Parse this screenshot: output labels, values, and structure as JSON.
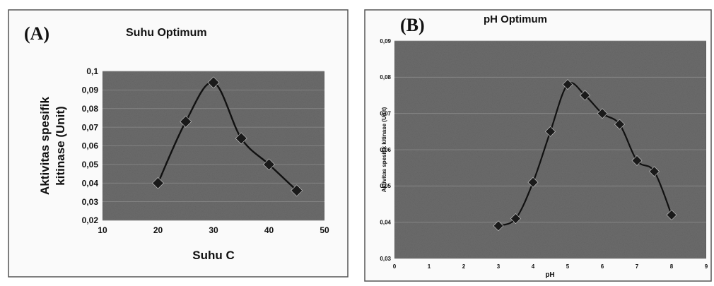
{
  "chart_data": [
    {
      "type": "line",
      "panel_label": "(A)",
      "title": "Suhu Optimum",
      "xlabel": "Suhu C",
      "ylabel_lines": [
        "Aktivitas spesifik",
        "kitinase (Unit)"
      ],
      "xlim": [
        10,
        50
      ],
      "ylim": [
        0.02,
        0.1
      ],
      "x_ticks": [
        10,
        20,
        30,
        40,
        50
      ],
      "x_tick_labels": [
        "10",
        "20",
        "30",
        "40",
        "50"
      ],
      "y_ticks": [
        0.02,
        0.03,
        0.04,
        0.05,
        0.06,
        0.07,
        0.08,
        0.09,
        0.1
      ],
      "y_tick_labels": [
        "0,02",
        "0,03",
        "0,04",
        "0,05",
        "0,06",
        "0,07",
        "0,08",
        "0,09",
        "0,1"
      ],
      "grid": true,
      "series": [
        {
          "x": [
            20,
            25,
            30,
            35,
            40,
            45
          ],
          "y": [
            0.04,
            0.073,
            0.094,
            0.064,
            0.05,
            0.036
          ]
        }
      ]
    },
    {
      "type": "line",
      "panel_label": "(B)",
      "title": "pH Optimum",
      "xlabel": "pH",
      "ylabel_lines": [
        "Aktivitas spesifik kitinase (Unit)"
      ],
      "xlim": [
        0,
        9
      ],
      "ylim": [
        0.03,
        0.09
      ],
      "x_ticks": [
        0,
        1,
        2,
        3,
        4,
        5,
        6,
        7,
        8,
        9
      ],
      "x_tick_labels": [
        "0",
        "1",
        "2",
        "3",
        "4",
        "5",
        "6",
        "7",
        "8",
        "9"
      ],
      "y_ticks": [
        0.03,
        0.04,
        0.05,
        0.06,
        0.07,
        0.08,
        0.09
      ],
      "y_tick_labels": [
        "0,03",
        "0,04",
        "0,05",
        "0,06",
        "0,07",
        "0,08",
        "0,09"
      ],
      "grid": true,
      "series": [
        {
          "x": [
            3,
            3.5,
            4,
            4.5,
            5,
            5.5,
            6,
            6.5,
            7,
            7.5,
            8
          ],
          "y": [
            0.039,
            0.041,
            0.051,
            0.065,
            0.078,
            0.075,
            0.07,
            0.067,
            0.057,
            0.054,
            0.042
          ]
        }
      ]
    }
  ],
  "style": {
    "plot_bg": "#6c6c6c",
    "line_color": "#111111",
    "marker_color": "#1a1a1a",
    "grid_color": "#8a8a8a",
    "frame_color": "#555555"
  }
}
